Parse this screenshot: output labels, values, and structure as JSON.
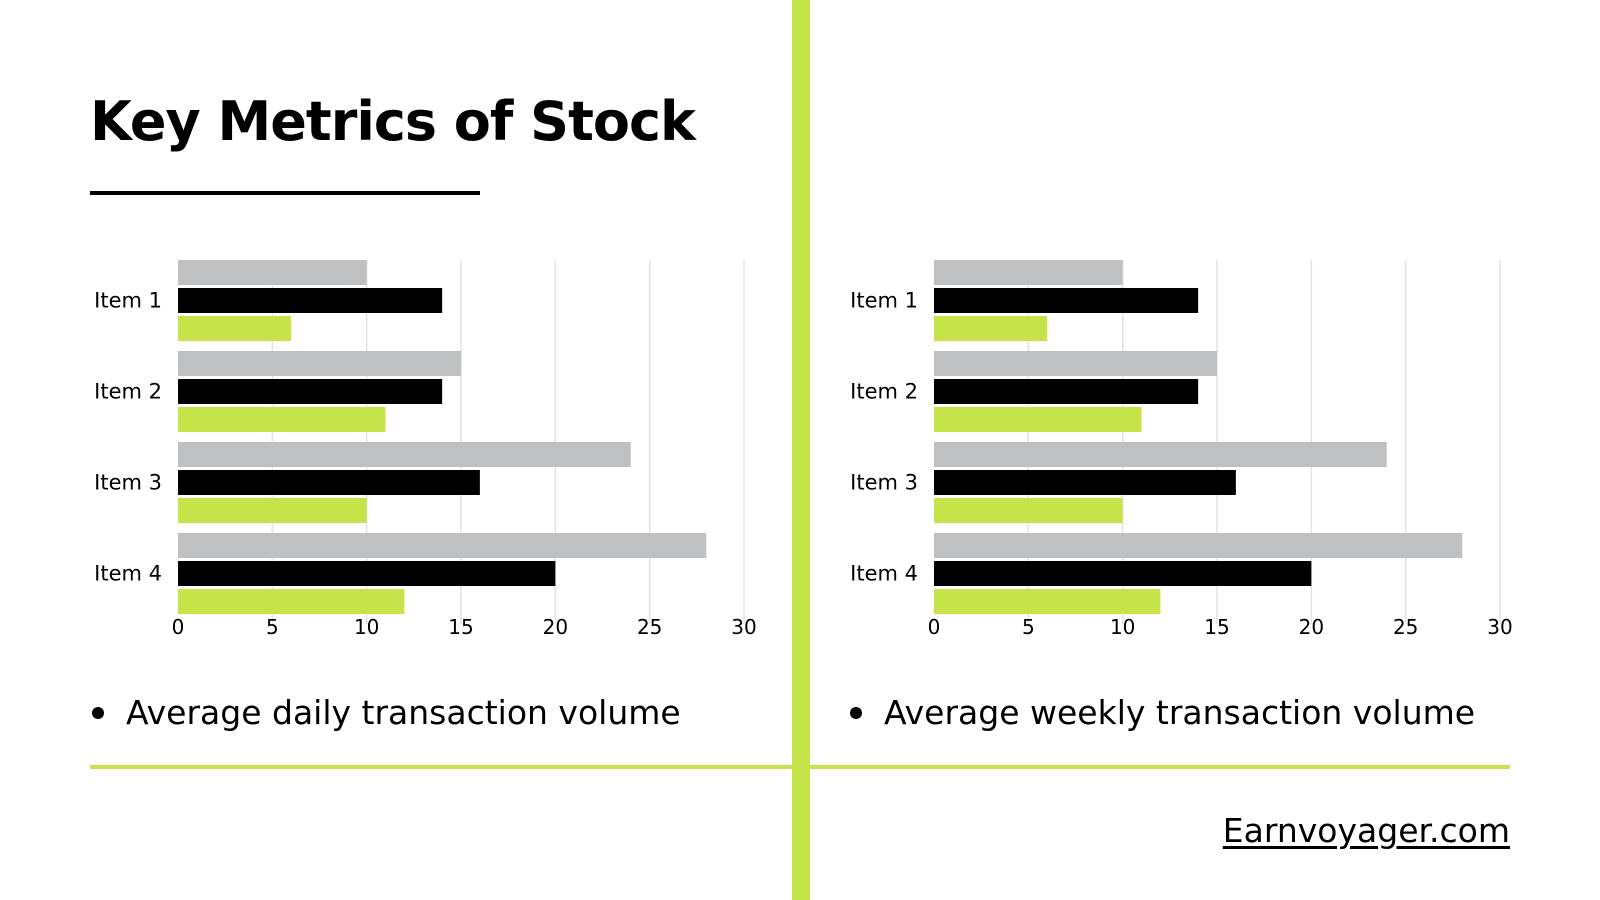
{
  "title": "Key Metrics of Stock",
  "colors": {
    "accent": "#c6e44a",
    "series": [
      "#bfc0c1",
      "#000000",
      "#c6e44a"
    ],
    "text": "#000000",
    "gridline": "#e3e3e3",
    "background": "#ffffff"
  },
  "captions": {
    "left": "Average daily transaction volume",
    "right": "Average weekly transaction volume"
  },
  "footer": {
    "link_text": "Earnvoyager.com"
  },
  "chart_data": [
    {
      "type": "bar",
      "orientation": "horizontal",
      "categories": [
        "Item 1",
        "Item 2",
        "Item 3",
        "Item 4"
      ],
      "series": [
        {
          "values": [
            10,
            15,
            24,
            28
          ]
        },
        {
          "values": [
            14,
            14,
            16,
            20
          ]
        },
        {
          "values": [
            6,
            11,
            10,
            12
          ]
        }
      ],
      "xlim": [
        0,
        30
      ],
      "xticks": [
        0,
        5,
        10,
        15,
        20,
        25,
        30
      ],
      "grid": true,
      "legend": "none"
    },
    {
      "type": "bar",
      "orientation": "horizontal",
      "categories": [
        "Item 1",
        "Item 2",
        "Item 3",
        "Item 4"
      ],
      "series": [
        {
          "values": [
            10,
            15,
            24,
            28
          ]
        },
        {
          "values": [
            14,
            14,
            16,
            20
          ]
        },
        {
          "values": [
            6,
            11,
            10,
            12
          ]
        }
      ],
      "xlim": [
        0,
        30
      ],
      "xticks": [
        0,
        5,
        10,
        15,
        20,
        25,
        30
      ],
      "grid": true,
      "legend": "none"
    }
  ]
}
